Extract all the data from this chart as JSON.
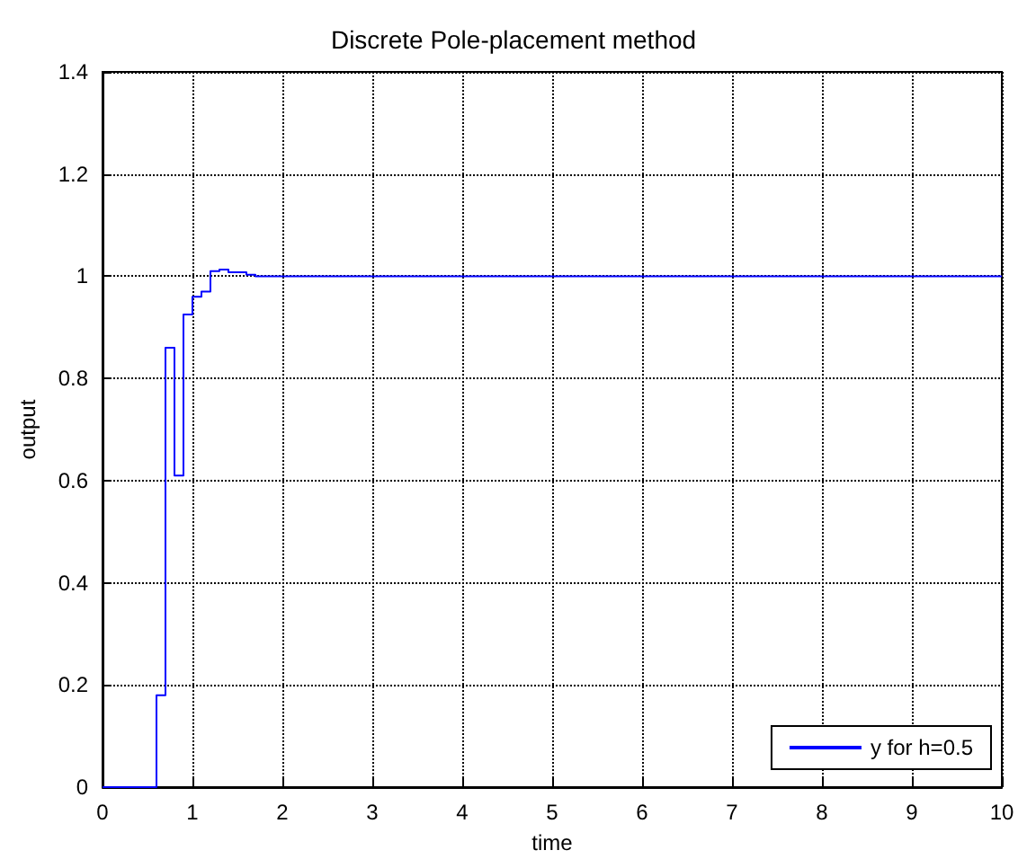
{
  "chart_data": {
    "type": "step",
    "title": "Discrete Pole-placement method",
    "xlabel": "time",
    "ylabel": "output",
    "series": [
      {
        "name": "y for h=0.5",
        "color": "#0000ff",
        "x": [
          0,
          0.6,
          0.7,
          0.8,
          0.9,
          1.0,
          1.1,
          1.2,
          1.3,
          1.4,
          1.6,
          1.7,
          10
        ],
        "values": [
          0,
          0.18,
          0.86,
          0.61,
          0.925,
          0.96,
          0.97,
          1.01,
          1.013,
          1.008,
          1.003,
          1.0,
          1.0
        ]
      }
    ],
    "xlim": [
      0,
      10
    ],
    "xticks": [
      0,
      1,
      2,
      3,
      4,
      5,
      6,
      7,
      8,
      9,
      10
    ],
    "ylim": [
      0,
      1.4
    ],
    "yticks": [
      0,
      0.2,
      0.4,
      0.6,
      0.8,
      1,
      1.2,
      1.4
    ],
    "grid": true,
    "legend": "bottom right",
    "line_style": "solid",
    "marker": "none"
  }
}
